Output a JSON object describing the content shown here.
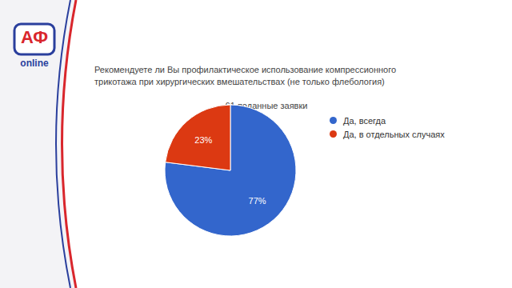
{
  "chart_data": {
    "type": "pie",
    "title": "Рекомендуете ли Вы профилактическое использование компрессионного трикотажа при хирургических вмешательствах (не только флебология)",
    "subtitle": "61 поданные заявки",
    "categories": [
      "Да, всегда",
      "Да, в отдельных случаях"
    ],
    "values": [
      77,
      23
    ],
    "value_labels": [
      "77%",
      "23%"
    ],
    "colors": [
      "#3366cc",
      "#dc3912"
    ],
    "data_labels": true,
    "legend": "right",
    "annotations": [
      "АФ",
      "online"
    ]
  }
}
